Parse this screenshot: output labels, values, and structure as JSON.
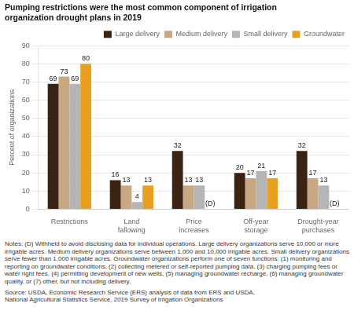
{
  "chart_data": {
    "type": "bar",
    "title": "Pumping restrictions were the most common component of irrigation\norganization drought plans in 2019",
    "ylabel": "Percent of organizations",
    "categories": [
      "Restrictions",
      "Land\nfallowing",
      "Price\nincreases",
      "Off-year\nstorage",
      "Drought-year\npurchases"
    ],
    "series": [
      {
        "name": "Large delivery",
        "color": "#3b2314",
        "values": [
          69,
          16,
          32,
          20,
          32
        ]
      },
      {
        "name": "Medium delivery",
        "color": "#c8a882",
        "values": [
          73,
          13,
          13,
          17,
          17
        ]
      },
      {
        "name": "Small delivery",
        "color": "#b5b5b5",
        "values": [
          69,
          4,
          13,
          21,
          13
        ]
      },
      {
        "name": "Groundwater",
        "color": "#e8a020",
        "values": [
          80,
          13,
          null,
          17,
          null
        ],
        "value_labels": [
          "80",
          "13",
          "(D)",
          "17",
          "(D)"
        ]
      }
    ],
    "ylim": [
      0,
      90
    ],
    "yticks": [
      0,
      10,
      20,
      30,
      40,
      50,
      60,
      70,
      80,
      90
    ],
    "grid": true,
    "legend": "upper right",
    "data_labels": true,
    "annotations": [
      "Notes: (D) Withheld to avoid disclosing data for individual operations. Large delivery organizations serve 10,000 or more irrigable acres. Medium delivery organizations serve between 1,000 and 10,000 irrigable acres. Small delivery organizations serve fewer than 1,000 irrigable acres. Groundwater organizations perform one of seven functions: (1) monitoring and reporting on groundwater conditions, (2) collecting metered or self-reported pumping data, (3) charging pumping fees or water right fees, (4) permitting development of new wells, (5) managing groundwater recharge, (6) managing groundwater quality, or (7) other, but not including delivery.",
      "Source: USDA, Economic Research Service (ERS) analysis of data from ERS and USDA,\nNational Agricultural Statistics Service, 2019 Survey of Irrigation Organizations"
    ]
  }
}
